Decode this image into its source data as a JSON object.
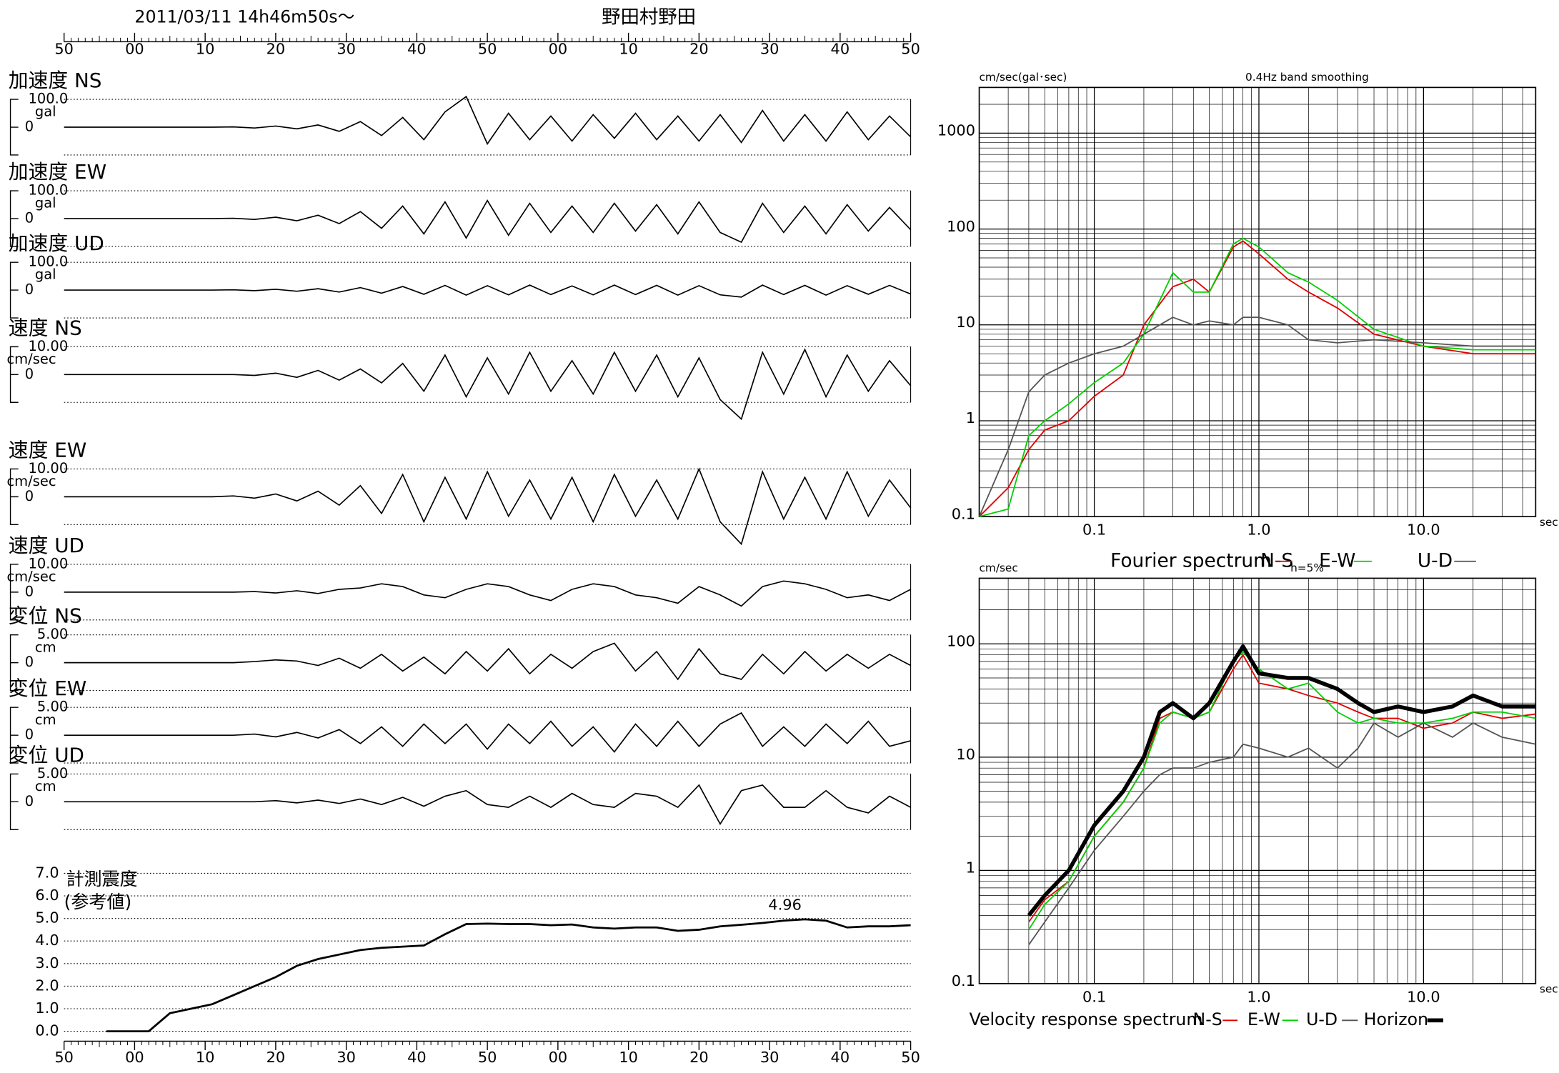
{
  "chart_data": [
    {
      "type": "seismogram",
      "title": "2011/03/11  14h46m50s〜",
      "subtitle": "野田村野田",
      "xlim": [
        0,
        120
      ],
      "xticks": [
        {
          "value": 0,
          "label": "50"
        },
        {
          "value": 10,
          "label": "00"
        },
        {
          "value": 20,
          "label": "10"
        },
        {
          "value": 30,
          "label": "20"
        },
        {
          "value": 40,
          "label": "30"
        },
        {
          "value": 50,
          "label": "40"
        },
        {
          "value": 60,
          "label": "50"
        },
        {
          "value": 70,
          "label": "00"
        },
        {
          "value": 80,
          "label": "10"
        },
        {
          "value": 90,
          "label": "20"
        },
        {
          "value": 100,
          "label": "30"
        },
        {
          "value": 110,
          "label": "40"
        },
        {
          "value": 120,
          "label": "50"
        }
      ],
      "x": [
        0,
        3,
        6,
        9,
        12,
        15,
        18,
        21,
        24,
        27,
        30,
        33,
        36,
        39,
        42,
        45,
        48,
        51,
        54,
        57,
        60,
        63,
        66,
        69,
        72,
        75,
        78,
        81,
        84,
        87,
        90,
        93,
        96,
        99,
        102,
        105,
        108,
        111,
        114,
        117,
        120
      ],
      "series": [
        {
          "name": "加速度 NS",
          "unit": "gal",
          "color": "#000000",
          "ylim": [
            -100,
            100
          ],
          "yticks": [
            0,
            {
              "value": 100,
              "label": "100.0"
            }
          ],
          "values": [
            0,
            0,
            0,
            0,
            0,
            0,
            0,
            0,
            1,
            -3,
            4,
            -6,
            8,
            -15,
            20,
            -30,
            35,
            -45,
            55,
            110,
            -60,
            50,
            -45,
            40,
            -50,
            45,
            -40,
            50,
            -45,
            40,
            -50,
            45,
            -55,
            60,
            -50,
            45,
            -50,
            55,
            -45,
            40,
            -35
          ]
        },
        {
          "name": "加速度 EW",
          "unit": "gal",
          "color": "#000000",
          "ylim": [
            -100,
            100
          ],
          "yticks": [
            0,
            {
              "value": 100,
              "label": "100.0"
            }
          ],
          "values": [
            0,
            0,
            0,
            0,
            0,
            0,
            0,
            0,
            1,
            -3,
            5,
            -8,
            12,
            -18,
            25,
            -35,
            45,
            -55,
            60,
            -70,
            65,
            -60,
            55,
            -50,
            45,
            -50,
            55,
            -45,
            50,
            -55,
            60,
            -50,
            -85,
            55,
            -50,
            45,
            -55,
            50,
            -45,
            40,
            -40
          ]
        },
        {
          "name": "加速度 UD",
          "unit": "gal",
          "color": "#000000",
          "ylim": [
            -100,
            100
          ],
          "yticks": [
            0,
            {
              "value": 100,
              "label": "100.0"
            }
          ],
          "values": [
            0,
            0,
            0,
            0,
            0,
            0,
            0,
            0,
            1,
            -2,
            3,
            -4,
            5,
            -7,
            9,
            -11,
            13,
            -15,
            17,
            -18,
            16,
            -17,
            18,
            -16,
            15,
            -17,
            18,
            -16,
            17,
            -18,
            16,
            -17,
            -25,
            18,
            -16,
            17,
            -18,
            16,
            -15,
            17,
            -14
          ]
        },
        {
          "name": "速度 NS",
          "unit": "cm/sec",
          "color": "#000000",
          "ylim": [
            -10,
            10
          ],
          "yticks": [
            0,
            {
              "value": 10,
              "label": "10.00"
            }
          ],
          "values": [
            0,
            0,
            0,
            0,
            0,
            0,
            0,
            0,
            0,
            -0.3,
            0.5,
            -1,
            1.5,
            -2,
            2,
            -3,
            4,
            -6,
            7,
            -8,
            6,
            -7,
            8,
            -6,
            5,
            -7,
            8,
            -6,
            7,
            -8,
            6,
            -9,
            -16,
            8,
            -7,
            9,
            -8,
            7,
            -6,
            5,
            -4
          ]
        },
        {
          "name": "速度 EW",
          "unit": "cm/sec",
          "color": "#000000",
          "ylim": [
            -10,
            10
          ],
          "yticks": [
            0,
            {
              "value": 10,
              "label": "10.00"
            }
          ],
          "values": [
            0,
            0,
            0,
            0,
            0,
            0,
            0,
            0,
            0.3,
            -0.5,
            1,
            -1.5,
            2,
            -3,
            4,
            -6,
            8,
            -9,
            7,
            -8,
            9,
            -7,
            6,
            -8,
            7,
            -9,
            8,
            -7,
            6,
            -8,
            10,
            -9,
            -17,
            9,
            -8,
            7,
            -8,
            9,
            -7,
            6,
            -4
          ]
        },
        {
          "name": "速度 UD",
          "unit": "cm/sec",
          "color": "#000000",
          "ylim": [
            -10,
            10
          ],
          "yticks": [
            0,
            {
              "value": 10,
              "label": "10.00"
            }
          ],
          "values": [
            0,
            0,
            0,
            0,
            0,
            0,
            0,
            0,
            0,
            0.2,
            -0.3,
            0.5,
            -0.5,
            1,
            1.5,
            3,
            2,
            -1,
            -2,
            1,
            3,
            2,
            -1,
            -3,
            1,
            3,
            2,
            -1,
            -2,
            -4,
            2,
            -1,
            -5,
            2,
            4,
            3,
            1,
            -2,
            -1,
            -3,
            1
          ]
        },
        {
          "name": "変位 NS",
          "unit": "cm",
          "color": "#000000",
          "ylim": [
            -5,
            5
          ],
          "yticks": [
            0,
            {
              "value": 5,
              "label": "5.00"
            }
          ],
          "values": [
            0,
            0,
            0,
            0,
            0,
            0,
            0,
            0,
            0,
            0.2,
            0.5,
            0.3,
            -0.5,
            0.8,
            -1,
            1.5,
            -1.5,
            1,
            -2,
            2,
            -1.5,
            2.5,
            -2,
            1.5,
            -1,
            2,
            3.5,
            -1.5,
            2,
            -3,
            2.5,
            -2,
            -3,
            1.5,
            -2,
            2,
            -1.5,
            1.5,
            -1,
            1.5,
            -0.5
          ]
        },
        {
          "name": "変位 EW",
          "unit": "cm",
          "color": "#000000",
          "ylim": [
            -5,
            5
          ],
          "yticks": [
            0,
            {
              "value": 5,
              "label": "5.00"
            }
          ],
          "values": [
            0,
            0,
            0,
            0,
            0,
            0,
            0,
            0,
            0,
            0.2,
            -0.3,
            0.5,
            -0.5,
            1,
            -1.5,
            1.5,
            -2,
            2,
            -1.5,
            2,
            -2.5,
            2,
            -1.5,
            2.5,
            -2,
            1.5,
            -3,
            2,
            -2,
            2.5,
            -2,
            2,
            4,
            -2,
            1.5,
            -2,
            2,
            -1.5,
            2.5,
            -2,
            -1
          ]
        },
        {
          "name": "変位 UD",
          "unit": "cm",
          "color": "#000000",
          "ylim": [
            -5,
            5
          ],
          "yticks": [
            0,
            {
              "value": 5,
              "label": "5.00"
            }
          ],
          "values": [
            0,
            0,
            0,
            0,
            0,
            0,
            0,
            0,
            0,
            0,
            0.2,
            -0.2,
            0.3,
            -0.3,
            0.5,
            -0.5,
            0.8,
            -0.8,
            1,
            2,
            -0.5,
            -1,
            1,
            -1,
            1.5,
            -0.5,
            -1,
            1.5,
            1,
            -1,
            3,
            -4,
            2,
            3,
            -1,
            -1,
            2,
            -1,
            -2,
            1,
            -1
          ]
        }
      ]
    },
    {
      "type": "line",
      "title": "計測震度",
      "subtitle": "(参考値)",
      "color": "#000000",
      "xlim": [
        0,
        120
      ],
      "xticks": [
        {
          "value": 0,
          "label": "50"
        },
        {
          "value": 10,
          "label": "00"
        },
        {
          "value": 20,
          "label": "10"
        },
        {
          "value": 30,
          "label": "20"
        },
        {
          "value": 40,
          "label": "30"
        },
        {
          "value": 50,
          "label": "40"
        },
        {
          "value": 60,
          "label": "50"
        },
        {
          "value": 70,
          "label": "00"
        },
        {
          "value": 80,
          "label": "10"
        },
        {
          "value": 90,
          "label": "20"
        },
        {
          "value": 100,
          "label": "30"
        },
        {
          "value": 110,
          "label": "40"
        },
        {
          "value": 120,
          "label": "50"
        }
      ],
      "ylim": [
        0,
        7
      ],
      "yticks": [
        {
          "value": 0,
          "label": "0.0"
        },
        {
          "value": 1,
          "label": "1.0"
        },
        {
          "value": 2,
          "label": "2.0"
        },
        {
          "value": 3,
          "label": "3.0"
        },
        {
          "value": 4,
          "label": "4.0"
        },
        {
          "value": 5,
          "label": "5.0"
        },
        {
          "value": 6,
          "label": "6.0"
        },
        {
          "value": 7,
          "label": "7.0"
        }
      ],
      "x": [
        0,
        3,
        6,
        9,
        12,
        15,
        18,
        21,
        24,
        27,
        30,
        33,
        36,
        39,
        42,
        45,
        48,
        51,
        54,
        57,
        60,
        63,
        66,
        69,
        72,
        75,
        78,
        81,
        84,
        87,
        90,
        93,
        96,
        99,
        102,
        105,
        108,
        111,
        114,
        117,
        120
      ],
      "values": [
        null,
        null,
        0,
        0,
        0,
        0.8,
        1.0,
        1.2,
        1.6,
        2.0,
        2.4,
        2.9,
        3.2,
        3.4,
        3.6,
        3.7,
        3.75,
        3.8,
        4.3,
        4.75,
        4.77,
        4.75,
        4.75,
        4.7,
        4.73,
        4.6,
        4.55,
        4.6,
        4.6,
        4.45,
        4.5,
        4.65,
        4.72,
        4.8,
        4.9,
        4.96,
        4.9,
        4.6,
        4.65,
        4.65,
        4.7
      ],
      "annotation": {
        "x": 105,
        "value": 4.96
      }
    },
    {
      "type": "loglog",
      "title": "0.4Hz band smoothing",
      "y_label": "cm/sec(gal･sec)",
      "x_label": "sec",
      "caption": "Fourier spectrum",
      "xlim": [
        0.02,
        48
      ],
      "ylim": [
        0.1,
        3000
      ],
      "log_x": true,
      "log_y": true,
      "grid": true,
      "xticks": [
        0.1,
        {
          "value": 1,
          "label": "1.0"
        },
        {
          "value": 10,
          "label": "10.0"
        }
      ],
      "yticks": [
        0.1,
        1,
        10,
        100,
        1000
      ],
      "x": [
        0.02,
        0.03,
        0.04,
        0.05,
        0.07,
        0.1,
        0.15,
        0.2,
        0.3,
        0.4,
        0.5,
        0.7,
        0.8,
        1.0,
        1.5,
        2,
        3,
        5,
        10,
        20,
        48
      ],
      "series": [
        {
          "name": "N-S",
          "color": "#e00000",
          "width": 1.3,
          "values": [
            0.1,
            0.2,
            0.5,
            0.8,
            1.0,
            1.8,
            3,
            10,
            25,
            30,
            22,
            65,
            75,
            55,
            30,
            22,
            15,
            8,
            6,
            5,
            5
          ]
        },
        {
          "name": "E-W",
          "color": "#00d000",
          "width": 1.3,
          "values": [
            0.1,
            0.12,
            0.7,
            1.0,
            1.5,
            2.5,
            4,
            8,
            35,
            22,
            22,
            70,
            80,
            65,
            35,
            28,
            18,
            9,
            6,
            5.5,
            5.5
          ]
        },
        {
          "name": "U-D",
          "color": "#555555",
          "width": 1.3,
          "values": [
            0.1,
            0.5,
            2,
            3,
            4,
            5,
            6,
            8,
            12,
            10,
            11,
            10,
            12,
            12,
            10,
            7,
            6.5,
            7,
            6.5,
            6,
            6
          ]
        }
      ]
    },
    {
      "type": "loglog",
      "title": "h=5%",
      "y_label": "cm/sec",
      "x_label": "sec",
      "caption": "Velocity response spectrum",
      "xlim": [
        0.02,
        48
      ],
      "ylim": [
        0.1,
        380
      ],
      "log_x": true,
      "log_y": true,
      "grid": true,
      "xticks": [
        0.1,
        {
          "value": 1,
          "label": "1.0"
        },
        {
          "value": 10,
          "label": "10.0"
        }
      ],
      "yticks": [
        0.1,
        1,
        10,
        100
      ],
      "x": [
        0.04,
        0.05,
        0.07,
        0.1,
        0.15,
        0.2,
        0.25,
        0.3,
        0.4,
        0.5,
        0.7,
        0.8,
        1,
        1.5,
        2,
        3,
        4,
        5,
        7,
        10,
        15,
        20,
        30,
        48
      ],
      "series": [
        {
          "name": "N-S",
          "color": "#e00000",
          "width": 1.3,
          "values": [
            0.35,
            0.55,
            0.8,
            2,
            4,
            8,
            22,
            25,
            22,
            25,
            60,
            80,
            45,
            40,
            35,
            30,
            25,
            22,
            22,
            18,
            20,
            25,
            22,
            24
          ]
        },
        {
          "name": "E-W",
          "color": "#00d000",
          "width": 1.3,
          "values": [
            0.3,
            0.5,
            0.8,
            2,
            4,
            8,
            20,
            25,
            22,
            25,
            70,
            85,
            60,
            40,
            45,
            25,
            20,
            22,
            20,
            20,
            22,
            25,
            25,
            22
          ]
        },
        {
          "name": "U-D",
          "color": "#555555",
          "width": 1.3,
          "values": [
            0.22,
            0.35,
            0.7,
            1.5,
            3,
            5,
            7,
            8,
            8,
            9,
            10,
            13,
            12,
            10,
            12,
            8,
            12,
            20,
            15,
            20,
            15,
            20,
            15,
            13
          ]
        },
        {
          "name": "Horizon",
          "color": "#000000",
          "width": 4,
          "values": [
            0.4,
            0.6,
            1,
            2.5,
            5,
            10,
            25,
            30,
            22,
            30,
            70,
            95,
            55,
            50,
            50,
            40,
            30,
            25,
            28,
            25,
            28,
            35,
            28,
            28
          ]
        }
      ]
    }
  ]
}
